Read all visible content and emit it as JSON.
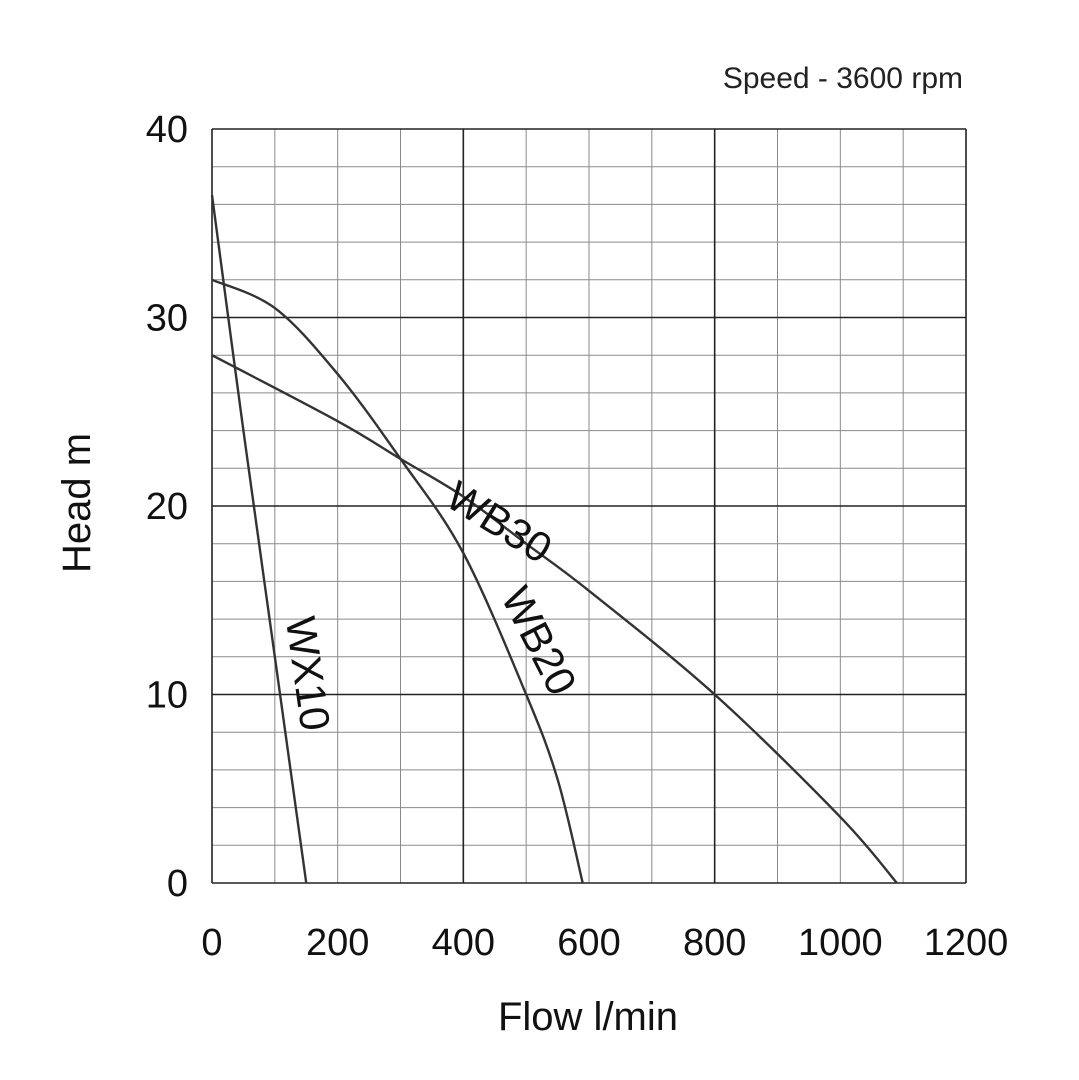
{
  "chart_data": {
    "type": "line",
    "annotation": "Speed - 3600 rpm",
    "xlabel": "Flow l/min",
    "ylabel": "Head m",
    "xlim": [
      0,
      1200
    ],
    "ylim": [
      0,
      40
    ],
    "x_ticks": [
      0,
      200,
      400,
      600,
      800,
      1000,
      1200
    ],
    "y_ticks": [
      0,
      10,
      20,
      30,
      40
    ],
    "x_major_step": 400,
    "y_major_step": 10,
    "x_minor_step": 100,
    "y_minor_step": 2,
    "grid": true,
    "series": [
      {
        "name": "WX10",
        "x": [
          0,
          50,
          100,
          150
        ],
        "y": [
          36.5,
          24,
          12,
          0
        ]
      },
      {
        "name": "WB20",
        "x": [
          0,
          100,
          200,
          300,
          400,
          500,
          550,
          590
        ],
        "y": [
          32,
          30.5,
          27,
          22.5,
          17.5,
          10,
          5.5,
          0
        ]
      },
      {
        "name": "WB30",
        "x": [
          0,
          200,
          300,
          400,
          500,
          600,
          800,
          1000,
          1090
        ],
        "y": [
          28,
          24.5,
          22.5,
          20.5,
          18,
          15.5,
          10,
          3.5,
          0
        ]
      }
    ],
    "curve_labels": [
      {
        "series": "WX10",
        "text": "WX10",
        "at": [
          130,
          11
        ],
        "angle": 82
      },
      {
        "series": "WB20",
        "text": "WB20",
        "at": [
          500,
          12.5
        ],
        "angle": 63
      },
      {
        "series": "WB30",
        "text": "WB30",
        "at": [
          445,
          18.5
        ],
        "angle": 32
      }
    ]
  }
}
